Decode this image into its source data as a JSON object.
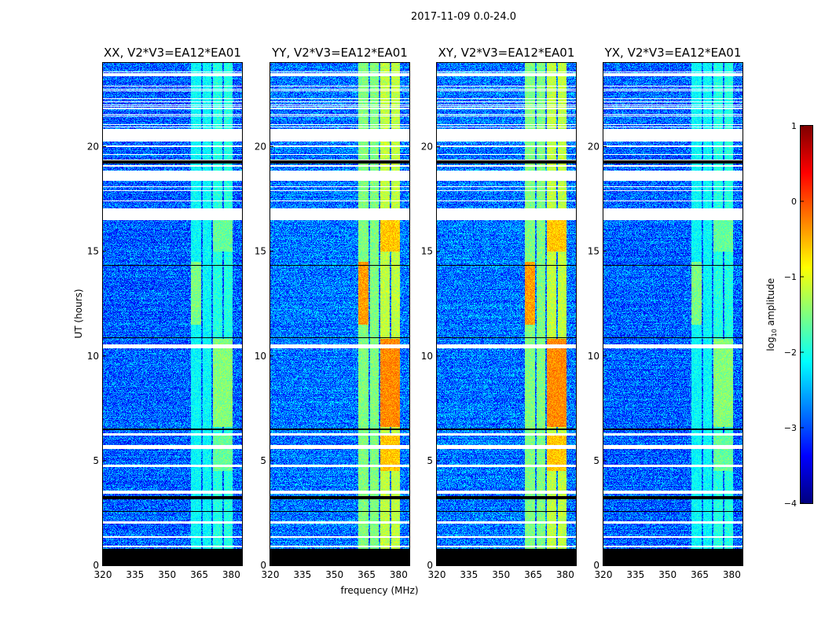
{
  "chart_data": {
    "type": "heatmap",
    "title": "2017-11-09 0.0-24.0",
    "xlabel": "frequency (MHz)",
    "ylabel": "UT (hours)",
    "xlim": [
      320,
      385
    ],
    "ylim": [
      0,
      24
    ],
    "xticks": [
      320,
      335,
      350,
      365,
      380
    ],
    "yticks": [
      0,
      5,
      10,
      15,
      20
    ],
    "panels": [
      {
        "title": "XX, V2*V3=EA12*EA01",
        "base": -2.9,
        "rfi_scale": 0.55
      },
      {
        "title": "YY, V2*V3=EA12*EA01",
        "base": -2.8,
        "rfi_scale": 1.0
      },
      {
        "title": "XY, V2*V3=EA12*EA01",
        "base": -2.8,
        "rfi_scale": 1.0
      },
      {
        "title": "YX, V2*V3=EA12*EA01",
        "base": -2.9,
        "rfi_scale": 0.55
      }
    ],
    "rfi_bands": [
      {
        "fmin": 361,
        "fmax": 366,
        "tmin": 0.8,
        "tmax": 24,
        "level": -1.5
      },
      {
        "fmin": 366.5,
        "fmax": 370.5,
        "tmin": 0.8,
        "tmax": 24,
        "level": -1.5
      },
      {
        "fmin": 371.5,
        "fmax": 376,
        "tmin": 0.8,
        "tmax": 24,
        "level": -1.2
      },
      {
        "fmin": 376.5,
        "fmax": 380.5,
        "tmin": 0.8,
        "tmax": 24,
        "level": -1.2
      },
      {
        "fmin": 361,
        "fmax": 366,
        "tmin": 11.5,
        "tmax": 14.5,
        "level": -0.4
      },
      {
        "fmin": 371.5,
        "fmax": 380.5,
        "tmin": 6.6,
        "tmax": 10.8,
        "level": -0.3
      },
      {
        "fmin": 371.5,
        "fmax": 380.5,
        "tmin": 4.5,
        "tmax": 6.2,
        "level": -0.6
      },
      {
        "fmin": 371.5,
        "fmax": 380.5,
        "tmin": 15,
        "tmax": 16.5,
        "level": -0.6
      }
    ],
    "flagged_hours": [
      [
        20.25,
        20.85
      ],
      [
        18.35,
        18.85
      ],
      [
        16.5,
        17.05
      ],
      [
        10.35,
        10.55
      ],
      [
        6.2,
        6.3
      ],
      [
        5.55,
        5.75
      ],
      [
        4.7,
        4.8
      ],
      [
        3.4,
        3.55
      ],
      [
        2.0,
        2.1
      ],
      [
        1.3,
        1.4
      ],
      [
        0.85,
        0.95
      ]
    ],
    "no_data_hours": [
      [
        0,
        0.8
      ],
      [
        3.15,
        3.3
      ],
      [
        6.45,
        6.55
      ],
      [
        19.2,
        19.35
      ],
      [
        10.85,
        10.9
      ],
      [
        14.3,
        14.35
      ],
      [
        2.55,
        2.6
      ]
    ],
    "colorbar": {
      "label": "log10 amplitude",
      "label_main": "log",
      "label_sub": "10",
      "label_rest": " amplitude",
      "range": [
        -4,
        1
      ],
      "ticks": [
        "1",
        "0",
        "−1",
        "−2",
        "−3",
        "−4"
      ],
      "tick_values": [
        1,
        0,
        -1,
        -2,
        -3,
        -4
      ],
      "colormap": "jet"
    }
  }
}
